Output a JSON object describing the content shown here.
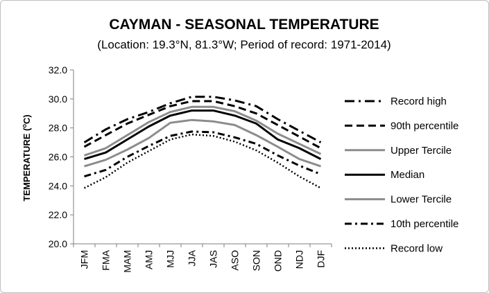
{
  "chart_data": {
    "type": "line",
    "title": "CAYMAN - SEASONAL TEMPERATURE",
    "subtitle": "(Location: 19.3°N, 81.3°W; Period of record: 1971-2014)",
    "ylabel_main": "TEMPERATURE (",
    "ylabel_sup": "o",
    "ylabel_end": "C)",
    "categories": [
      "JFM",
      "FMA",
      "MAM",
      "AMJ",
      "MJJ",
      "JJA",
      "JAS",
      "ASO",
      "SON",
      "OND",
      "NDJ",
      "DJF"
    ],
    "ylim": [
      20.0,
      32.0
    ],
    "yticks": [
      "20.0",
      "22.0",
      "24.0",
      "26.0",
      "28.0",
      "30.0",
      "32.0"
    ],
    "grid": false,
    "legend_position": "right",
    "series": [
      {
        "name": "Record high",
        "style": "dash-dot-long",
        "color": "#000000",
        "values": [
          27.0,
          27.9,
          28.6,
          29.1,
          29.7,
          30.15,
          30.15,
          29.9,
          29.5,
          28.6,
          27.8,
          27.0
        ]
      },
      {
        "name": "90th percentile",
        "style": "dash",
        "color": "#000000",
        "values": [
          26.7,
          27.5,
          28.3,
          28.9,
          29.5,
          29.85,
          29.85,
          29.5,
          29.0,
          28.2,
          27.4,
          26.6
        ]
      },
      {
        "name": "Upper Tercile",
        "style": "solid",
        "color": "#8c8c8c",
        "values": [
          26.1,
          26.6,
          27.5,
          28.4,
          29.1,
          29.45,
          29.45,
          29.15,
          28.5,
          27.6,
          26.9,
          26.2
        ]
      },
      {
        "name": "Median",
        "style": "solid-bold",
        "color": "#000000",
        "values": [
          25.85,
          26.3,
          27.2,
          28.1,
          28.85,
          29.2,
          29.2,
          28.85,
          28.3,
          27.2,
          26.6,
          25.85
        ]
      },
      {
        "name": "Lower Tercile",
        "style": "solid",
        "color": "#8c8c8c",
        "values": [
          25.35,
          25.8,
          26.5,
          27.3,
          28.35,
          28.55,
          28.45,
          28.2,
          27.5,
          26.7,
          25.85,
          25.35
        ]
      },
      {
        "name": "10th percentile",
        "style": "dash-dot",
        "color": "#000000",
        "values": [
          24.65,
          25.1,
          26.0,
          26.75,
          27.45,
          27.75,
          27.7,
          27.35,
          26.9,
          26.1,
          25.4,
          24.8
        ]
      },
      {
        "name": "Record low",
        "style": "dot",
        "color": "#000000",
        "values": [
          23.85,
          24.6,
          25.6,
          26.4,
          27.2,
          27.55,
          27.45,
          27.05,
          26.45,
          25.6,
          24.65,
          23.85
        ]
      }
    ]
  }
}
